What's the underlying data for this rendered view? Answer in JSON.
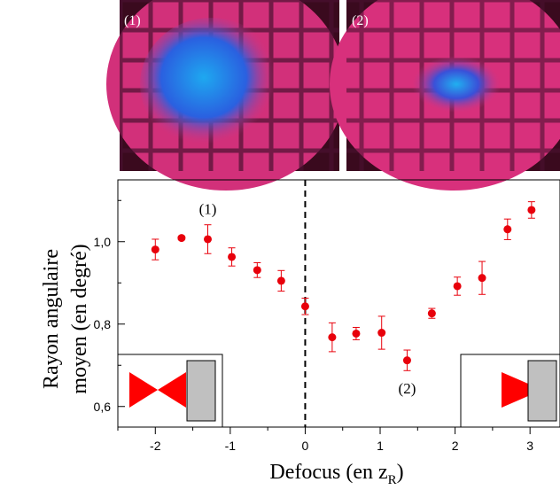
{
  "chart_data": {
    "type": "scatter",
    "photo_labels": [
      "(1)",
      "(2)"
    ],
    "annotations": [
      {
        "text": "(1)",
        "x": -1.3,
        "y": 1.08
      },
      {
        "text": "(2)",
        "x": 1.36,
        "y": 0.645
      }
    ],
    "ylabel": [
      "Rayon angulaire",
      "moyen (en degré)"
    ],
    "xlabel": {
      "main": "Defocus (en z",
      "sub": "R",
      "end": ")"
    },
    "xlim": [
      -2.5,
      3.4
    ],
    "ylim": [
      0.55,
      1.15
    ],
    "xticks": [
      -2,
      -1,
      0,
      1,
      2,
      3
    ],
    "xminorticks": [
      -2.5,
      -1.5,
      -0.5,
      0.5,
      1.5,
      2.5
    ],
    "yticks": [
      {
        "value": 0.6,
        "label": "0,6"
      },
      {
        "value": 0.8,
        "label": "0,8"
      },
      {
        "value": 1.0,
        "label": "1,0"
      }
    ],
    "yminorticks": [
      0.7,
      0.9,
      1.1
    ],
    "vline": 0,
    "series": [
      {
        "color": "#e8000b",
        "x": [
          -2,
          -1.65,
          -1.3,
          -0.98,
          -0.64,
          -0.32,
          0,
          0.36,
          0.68,
          1.02,
          1.36,
          1.69,
          2.03,
          2.36,
          2.7,
          3.02
        ],
        "values": [
          0.981,
          1.009,
          1.006,
          0.963,
          0.931,
          0.905,
          0.843,
          0.768,
          0.777,
          0.779,
          0.712,
          0.826,
          0.892,
          0.912,
          1.03,
          1.077
        ],
        "errors": [
          0.025,
          0.004,
          0.035,
          0.022,
          0.018,
          0.025,
          0.02,
          0.035,
          0.015,
          0.04,
          0.025,
          0.012,
          0.022,
          0.04,
          0.025,
          0.02
        ]
      }
    ]
  }
}
